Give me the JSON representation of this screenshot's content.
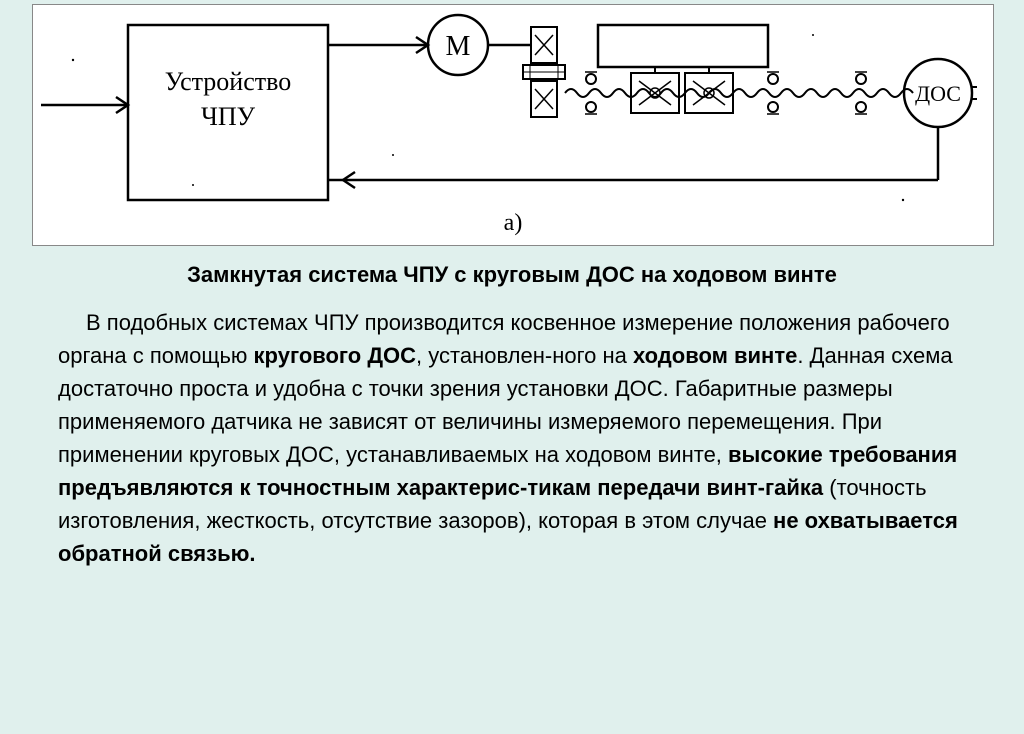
{
  "diagram": {
    "type": "block-diagram",
    "background_color": "#ffffff",
    "border_color": "#888888",
    "stroke_color": "#000000",
    "label_font": "Times New Roman, serif",
    "label_a": "а)",
    "blocks": {
      "cnc": {
        "label_line1": "Устройство",
        "label_line2": "ЧПУ",
        "fontsize": 26
      },
      "motor": {
        "label": "М",
        "fontsize": 28
      },
      "dos": {
        "label": "ДОС",
        "fontsize": 22
      }
    }
  },
  "title": "Замкнутая система ЧПУ с круговым ДОС на ходовом винте",
  "paragraph_runs": [
    {
      "text": "В подобных системах ЧПУ производится косвенное измерение положения рабочего органа с помощью ",
      "bold": false
    },
    {
      "text": "кругового ДОС",
      "bold": true
    },
    {
      "text": ", установлен-ного на ",
      "bold": false
    },
    {
      "text": "ходовом винте",
      "bold": true
    },
    {
      "text": ". Данная схема достаточно проста и удобна с точки зрения установки ДОС. Габаритные размеры применяемого датчика не зависят от величины измеряемого перемещения. При применении круговых ДОС, устанавливаемых на ходовом винте, ",
      "bold": false
    },
    {
      "text": "высокие требования предъявляются к точностным характерис-тикам передачи винт-гайка",
      "bold": true
    },
    {
      "text": " (точность изготовления, жесткость, отсутствие зазоров), которая в этом случае ",
      "bold": false
    },
    {
      "text": "не охватывается обратной связью.",
      "bold": true
    }
  ],
  "colors": {
    "page_bg": "#e0f0ed",
    "text": "#000000"
  }
}
